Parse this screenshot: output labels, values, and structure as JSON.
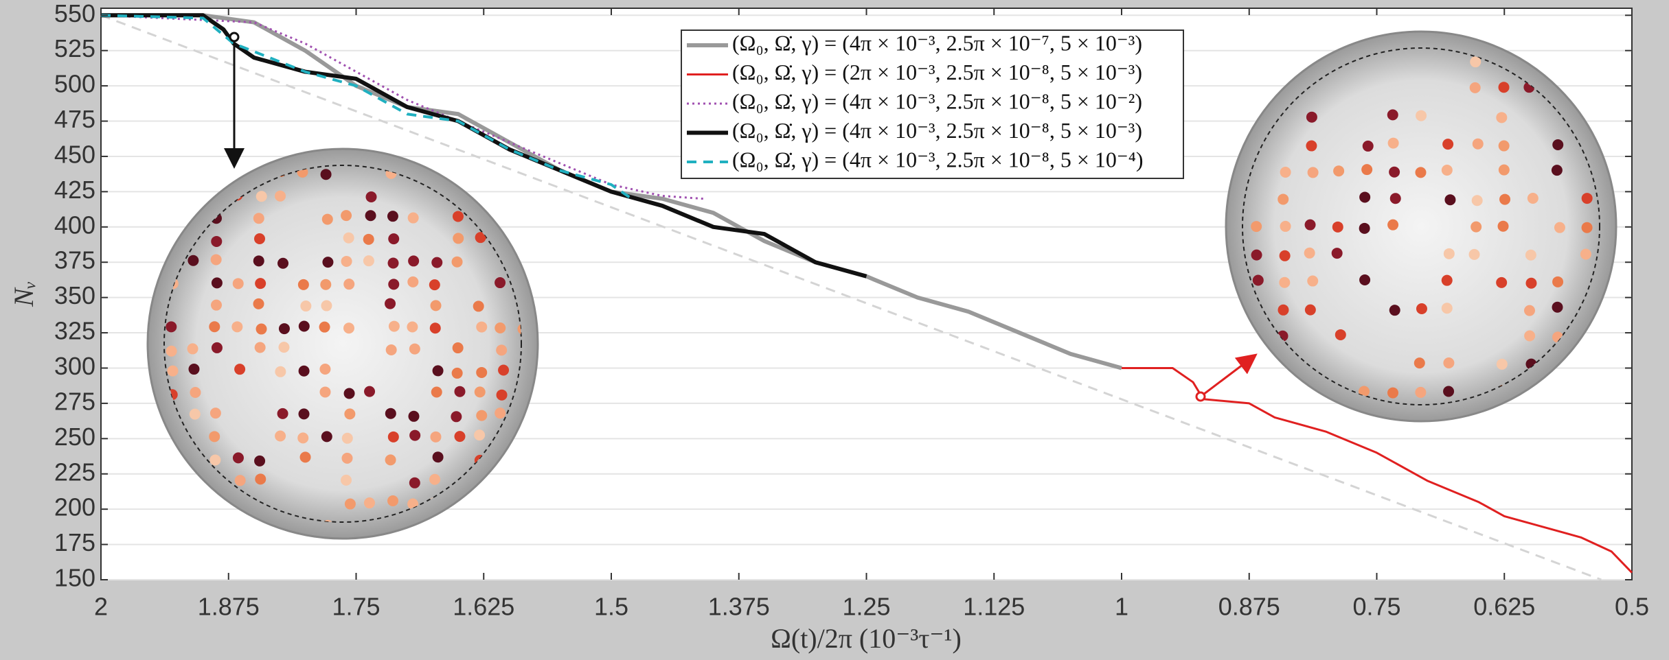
{
  "chart_data": {
    "type": "line",
    "xlabel": "Ω(t)/2π (10⁻³τ⁻¹)",
    "ylabel": "Nᵥ",
    "xlim": [
      2,
      0.5
    ],
    "xticks": [
      2,
      1.875,
      1.75,
      1.625,
      1.5,
      1.375,
      1.25,
      1.125,
      1,
      0.875,
      0.75,
      0.625,
      0.5
    ],
    "ylim": [
      150,
      555
    ],
    "yticks": [
      150,
      175,
      200,
      225,
      250,
      275,
      300,
      325,
      350,
      375,
      400,
      425,
      450,
      475,
      500,
      525,
      550
    ],
    "grid": true,
    "series": [
      {
        "color": "#d4d4d4",
        "dash": "dashed",
        "linewidth": 3,
        "x": [
          2,
          0.53
        ],
        "values": [
          550,
          150
        ]
      },
      {
        "name": "(Ω₀, Ω̇, γ) = (4π × 10⁻³, 2.5π × 10⁻⁷, 5 × 10⁻³)",
        "color": "#999999",
        "dash": "solid",
        "linewidth": 6,
        "x": [
          2,
          1.9,
          1.85,
          1.8,
          1.75,
          1.7,
          1.65,
          1.6,
          1.55,
          1.5,
          1.45,
          1.4,
          1.35,
          1.3,
          1.25,
          1.2,
          1.15,
          1.1,
          1.05,
          1.0
        ],
        "values": [
          550,
          550,
          545,
          525,
          500,
          485,
          480,
          460,
          440,
          425,
          420,
          410,
          390,
          375,
          365,
          350,
          340,
          325,
          310,
          300
        ]
      },
      {
        "name": "(Ω₀, Ω̇, γ) = (2π × 10⁻³, 2.5π × 10⁻⁸, 5 × 10⁻³)",
        "color": "#e02020",
        "dash": "solid",
        "linewidth": 3,
        "x": [
          1.0,
          0.95,
          0.93,
          0.92,
          0.875,
          0.85,
          0.8,
          0.75,
          0.7,
          0.65,
          0.625,
          0.6,
          0.55,
          0.52,
          0.5
        ],
        "values": [
          300,
          300,
          290,
          278,
          275,
          265,
          255,
          240,
          220,
          205,
          195,
          190,
          180,
          170,
          155
        ]
      },
      {
        "name": "(Ω₀, Ω̇, γ) = (4π × 10⁻³, 2.5π × 10⁻⁸, 5 × 10⁻²)",
        "color": "#a050b0",
        "dash": "dotted",
        "linewidth": 3,
        "x": [
          2,
          1.85,
          1.8,
          1.75,
          1.7,
          1.65,
          1.6,
          1.55,
          1.5,
          1.45,
          1.41
        ],
        "values": [
          550,
          545,
          530,
          510,
          490,
          475,
          460,
          445,
          430,
          422,
          420
        ]
      },
      {
        "name": "(Ω₀, Ω̇, γ) = (4π × 10⁻³, 2.5π × 10⁻⁸, 5 × 10⁻³)",
        "color": "#111111",
        "dash": "solid",
        "linewidth": 6,
        "x": [
          2,
          1.9,
          1.88,
          1.87,
          1.85,
          1.8,
          1.75,
          1.7,
          1.65,
          1.6,
          1.55,
          1.5,
          1.45,
          1.4,
          1.35,
          1.3,
          1.25
        ],
        "values": [
          550,
          550,
          540,
          530,
          520,
          510,
          505,
          485,
          475,
          455,
          440,
          425,
          415,
          400,
          395,
          375,
          365
        ]
      },
      {
        "name": "(Ω₀, Ω̇, γ) = (4π × 10⁻³, 2.5π × 10⁻⁸, 5 × 10⁻⁴)",
        "color": "#20b0c0",
        "dash": "dashed",
        "linewidth": 4,
        "x": [
          2,
          1.9,
          1.87,
          1.8,
          1.75,
          1.7,
          1.65,
          1.6,
          1.55,
          1.5,
          1.48
        ],
        "values": [
          550,
          548,
          530,
          510,
          500,
          480,
          475,
          455,
          440,
          430,
          420
        ]
      }
    ]
  }
}
